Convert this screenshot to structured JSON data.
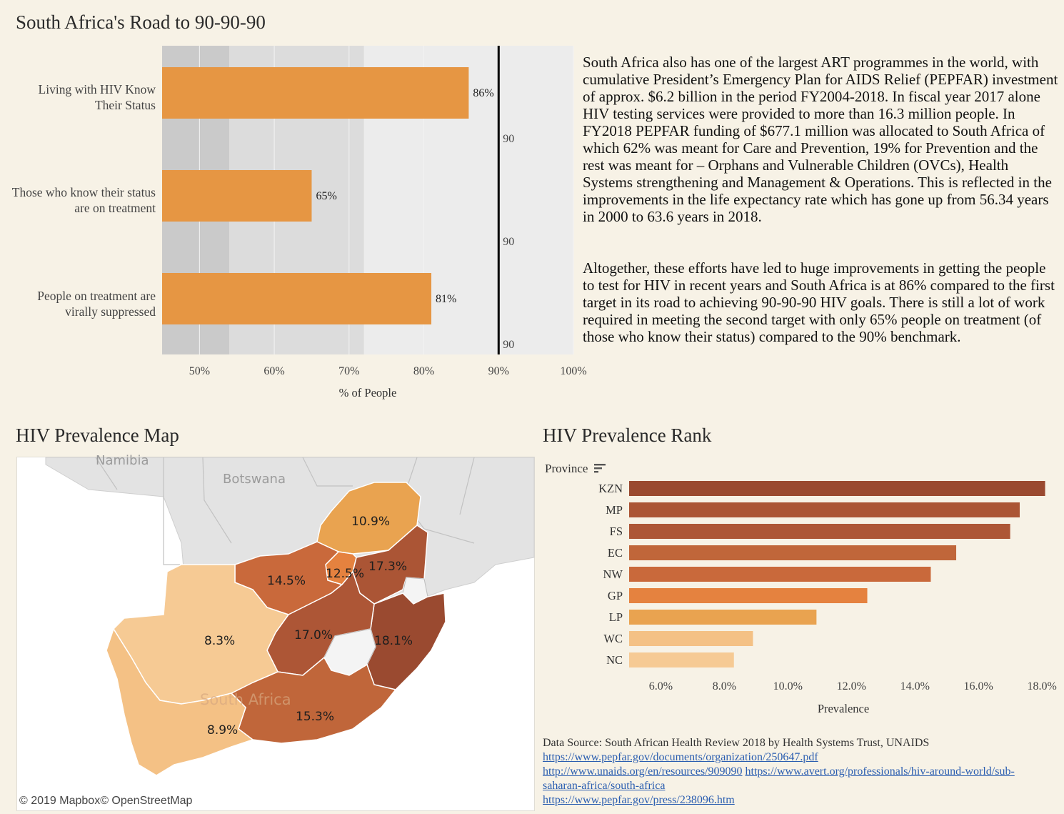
{
  "bullet": {
    "title": "South Africa's Road to 90-90-90",
    "xlabel": "% of People",
    "ticks": [
      "50%",
      "60%",
      "70%",
      "80%",
      "90%",
      "100%"
    ],
    "target_label": "90",
    "colors": {
      "bar": "#e69643",
      "band_dark": "#cacaca",
      "band_mid": "#dcdcdc",
      "band_light": "#ececec",
      "target": "#000000"
    }
  },
  "paragraphs": {
    "p1": "South Africa also has one of the largest ART programmes in the world, with cumulative President’s Emergency Plan for AIDS Relief (PEPFAR) investment of approx. $6.2 billion in the period FY2004-2018. In fiscal year 2017 alone HIV testing services were provided to more than 16.3 million people. In FY2018 PEPFAR funding of $677.1 million was allocated to South Africa of which 62% was meant for Care and Prevention, 19% for Prevention and the rest was meant for – Orphans and Vulnerable Children (OVCs), Health Systems strengthening and Management & Operations. This is reflected in the improvements in the life expectancy rate which has gone up from 56.34 years in 2000 to 63.6 years in 2018.",
    "p2": "Altogether, these efforts have led to huge improvements in getting the people to test for HIV in recent years and South Africa is at 86% compared to the first target in its road to achieving 90-90-90 HIV goals. There is still a lot of work required in meeting the second target with only 65% people on treatment (of those who know their status) compared to the 90% benchmark."
  },
  "map": {
    "title": "HIV Prevalence Map",
    "countries": {
      "namibia": "Namibia",
      "botswana": "Botswana",
      "south_africa": "South Africa"
    },
    "attribution": "© 2019 Mapbox© OpenStreetMap",
    "provinces": {
      "nc": "8.3%",
      "wc": "8.9%",
      "nw": "14.5%",
      "gp": "12.5%",
      "lp": "10.9%",
      "mp": "17.3%",
      "fs": "17.0%",
      "kzn": "18.1%",
      "ec": "15.3%"
    }
  },
  "rank": {
    "title": "HIV Prevalence Rank",
    "header": "Province",
    "xlabel": "Prevalence",
    "ticks": [
      "6.0%",
      "8.0%",
      "10.0%",
      "12.0%",
      "14.0%",
      "16.0%",
      "18.0%"
    ]
  },
  "source": {
    "text": "Data Source: South African Health Review 2018 by Health Systems Trust, UNAIDS",
    "link1": "https://www.pepfar.gov/documents/organization/250647.pdf",
    "link2": "http://www.unaids.org/en/resources/909090",
    "link3": "https://www.avert.org/professionals/hiv-around-world/sub-saharan-africa/south-africa",
    "link4": "https://www.pepfar.gov/press/238096.htm"
  },
  "chart_data": [
    {
      "type": "bar",
      "orientation": "horizontal",
      "title": "South Africa's Road to 90-90-90",
      "categories": [
        "Living with HIV Know Their Status",
        "Those who know their status are on treatment",
        "People on treatment are virally suppressed"
      ],
      "values": [
        86,
        65,
        81
      ],
      "value_labels": [
        "86%",
        "65%",
        "81%"
      ],
      "target": 90,
      "bands": [
        [
          45,
          54
        ],
        [
          54,
          72
        ],
        [
          72,
          100
        ]
      ],
      "xlabel": "% of People",
      "xlim": [
        45,
        100
      ],
      "grid": true
    },
    {
      "type": "bar",
      "orientation": "horizontal",
      "title": "HIV Prevalence Rank",
      "categories": [
        "KZN",
        "MP",
        "FS",
        "EC",
        "NW",
        "GP",
        "LP",
        "WC",
        "NC"
      ],
      "values": [
        18.1,
        17.3,
        17.0,
        15.3,
        14.5,
        12.5,
        10.9,
        8.9,
        8.3
      ],
      "colors": [
        "#9a4a30",
        "#ab5535",
        "#ad5636",
        "#c0663a",
        "#c9693b",
        "#e5823f",
        "#e9a350",
        "#f4c185",
        "#f6ca94"
      ],
      "xlabel": "Prevalence",
      "xlim": [
        5.0,
        18.2
      ]
    }
  ]
}
